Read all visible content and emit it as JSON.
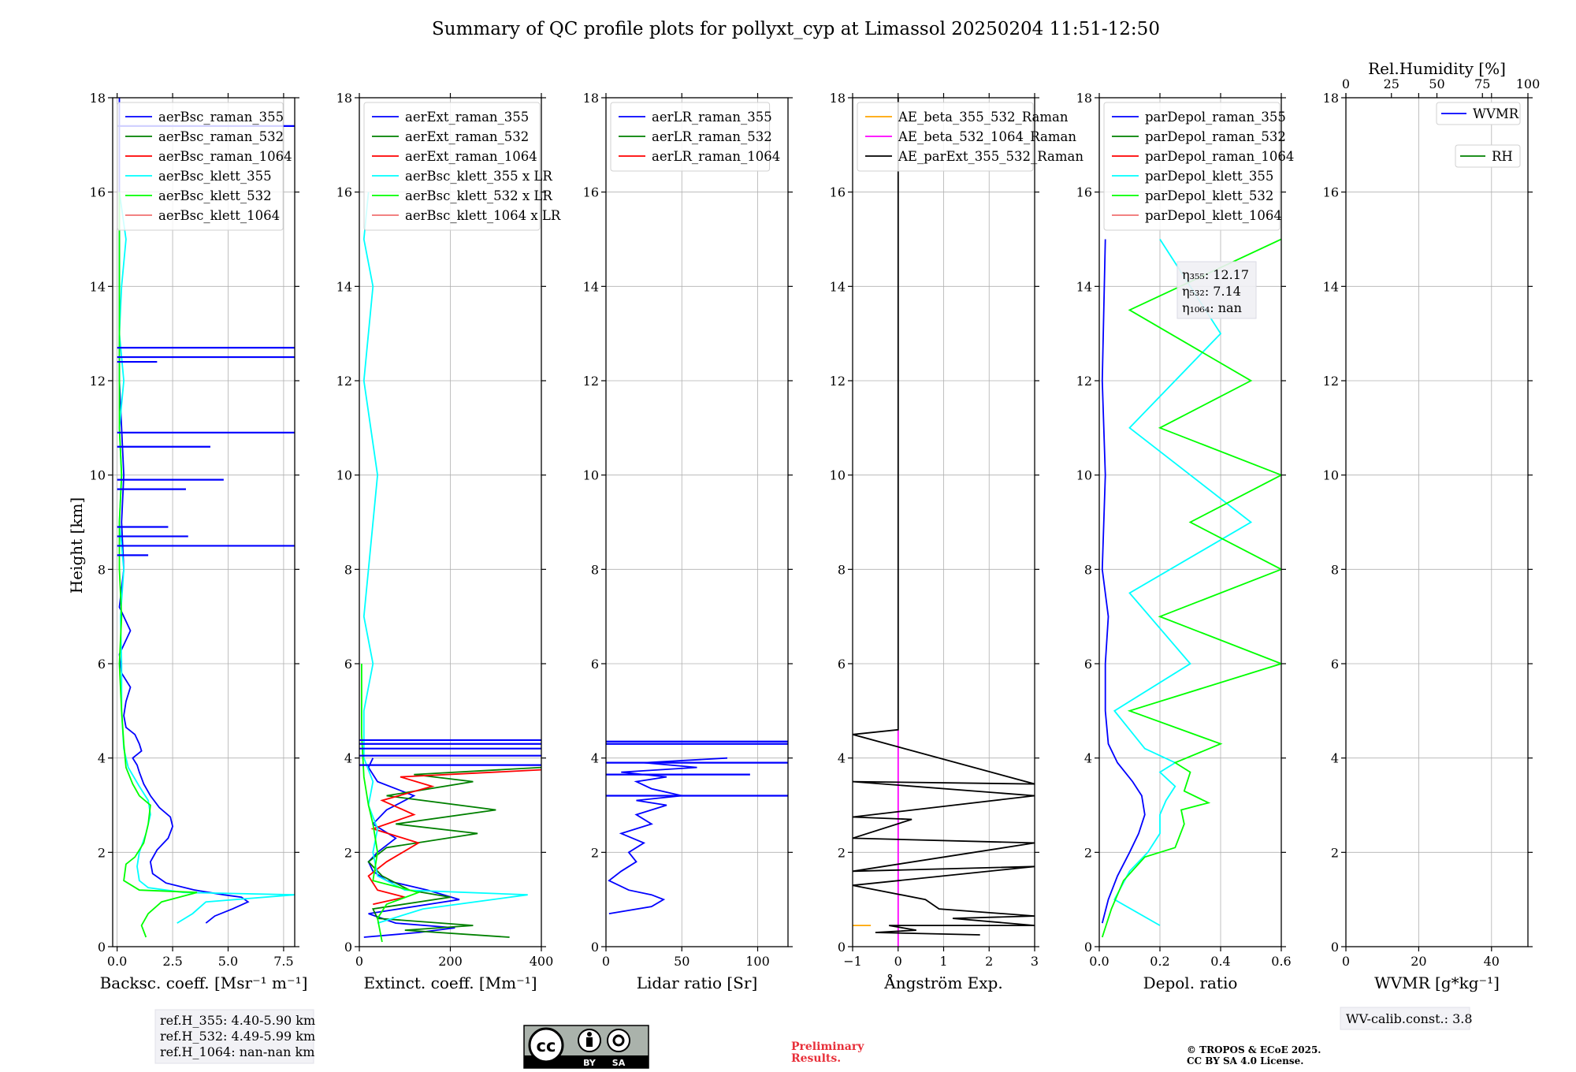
{
  "title": "Summary of QC profile plots for pollyxt_cyp at Limassol 20250204 11:51-12:50",
  "y_label": "Height [km]",
  "notes": {
    "refH": [
      "ref.H_355: 4.40-5.90 km",
      "ref.H_532: 4.49-5.99 km",
      "ref.H_1064: nan-nan km"
    ],
    "eta": [
      "η₃₅₅: 12.17",
      "η₅₃₂: 7.14",
      "η₁₀₆₄: nan"
    ],
    "wv_calib": "WV-calib.const.: 3.8",
    "preliminary": [
      "Preliminary",
      "Results."
    ],
    "copyright": [
      "© TROPOS & ECoE 2025.",
      "CC BY SA 4.0 License."
    ],
    "license_badge": [
      "BY",
      "SA"
    ]
  },
  "chart_data": [
    {
      "type": "line",
      "panel": "backscatter",
      "xlabel": "Backsc. coeff. [Msr⁻¹ m⁻¹]",
      "xlim": [
        -0.2,
        8.0
      ],
      "ylim": [
        0,
        18
      ],
      "xticks": [
        0.0,
        2.5,
        5.0,
        7.5
      ],
      "xtick_labels": [
        "0.0",
        "2.5",
        "5.0",
        "7.5"
      ],
      "yticks": [
        0,
        2,
        4,
        6,
        8,
        10,
        12,
        14,
        16,
        18
      ],
      "ytick_labels": [
        "0",
        "2",
        "4",
        "6",
        "8",
        "10",
        "12",
        "14",
        "16",
        "18"
      ],
      "grid": true,
      "legend": "top",
      "series": [
        {
          "name": "aerBsc_raman_355",
          "color": "#0000ff",
          "x": [
            4.0,
            4.4,
            5.2,
            5.9,
            5.6,
            4.8,
            3.5,
            2.2,
            1.6,
            1.5,
            1.8,
            2.3,
            2.5,
            2.4,
            1.9,
            1.5,
            1.2,
            1.0,
            0.9,
            0.7,
            1.1,
            1.0,
            0.8,
            0.4,
            0.3,
            0.4,
            0.6,
            0.2,
            0.1,
            0.6,
            0.1,
            0.3,
            0.2,
            0.3,
            0.1,
            0.1,
            0.1
          ],
          "y": [
            0.5,
            0.65,
            0.8,
            0.95,
            1.05,
            1.1,
            1.2,
            1.35,
            1.55,
            1.8,
            2.05,
            2.3,
            2.55,
            2.75,
            2.95,
            3.2,
            3.45,
            3.7,
            3.85,
            4.0,
            4.15,
            4.3,
            4.5,
            4.65,
            4.9,
            5.2,
            5.5,
            5.8,
            6.2,
            6.7,
            7.2,
            8.0,
            9.0,
            10.0,
            12.0,
            14.0,
            18.0
          ]
        },
        {
          "name": "aerBsc_raman_532",
          "color": "#008000",
          "x": [],
          "y": []
        },
        {
          "name": "aerBsc_raman_1064",
          "color": "#ff0000",
          "x": [],
          "y": []
        },
        {
          "name": "aerBsc_klett_355",
          "color": "#00ffff",
          "x": [
            2.7,
            3.4,
            4.0,
            8.0,
            3.0,
            1.4,
            1.0,
            0.9,
            1.0,
            1.3,
            1.5,
            1.4,
            1.0,
            0.5,
            0.3,
            0.2,
            0.2,
            0.15,
            0.3,
            0.1,
            0.2,
            0.1,
            0.3,
            0.1,
            0.2,
            0.4,
            0.1
          ],
          "y": [
            0.5,
            0.7,
            0.95,
            1.1,
            1.15,
            1.25,
            1.4,
            1.7,
            2.0,
            2.4,
            2.8,
            3.1,
            3.4,
            3.8,
            4.2,
            5.0,
            6.0,
            7.0,
            8.0,
            9.0,
            10.0,
            11.0,
            12.0,
            13.0,
            14.0,
            15.0,
            16.0
          ]
        },
        {
          "name": "aerBsc_klett_532",
          "color": "#00ff00",
          "x": [
            1.3,
            1.1,
            1.4,
            2.0,
            3.6,
            1.0,
            0.3,
            0.4,
            0.8,
            1.2,
            1.4,
            1.5,
            1.0,
            0.7,
            0.4,
            0.3,
            0.2,
            0.1,
            0.2,
            0.1,
            0.1,
            0.2,
            0.1,
            0.1,
            0.1,
            0.1
          ],
          "y": [
            0.2,
            0.45,
            0.7,
            0.95,
            1.15,
            1.2,
            1.4,
            1.75,
            1.9,
            2.2,
            2.6,
            3.0,
            3.2,
            3.45,
            3.8,
            4.3,
            5.0,
            6.0,
            7.0,
            8.0,
            9.0,
            10.0,
            11.0,
            12.0,
            14.0,
            16.0
          ]
        },
        {
          "name": "aerBsc_klett_1064",
          "color": "#f07070",
          "x": [],
          "y": []
        }
      ],
      "spikes": {
        "series": "aerBsc_raman_355",
        "y": [
          8.3,
          8.5,
          8.7,
          8.9,
          9.7,
          9.9,
          10.6,
          10.9,
          12.4,
          12.5,
          12.7,
          17.4
        ],
        "x": [
          1.4,
          8.0,
          3.2,
          2.3,
          3.1,
          4.8,
          4.2,
          8.0,
          1.8,
          8.0,
          8.0,
          8.0
        ]
      }
    },
    {
      "type": "line",
      "panel": "extinction",
      "xlabel": "Extinct. coeff. [Mm⁻¹]",
      "xlim": [
        0,
        400
      ],
      "ylim": [
        0,
        18
      ],
      "xticks": [
        0,
        200,
        400
      ],
      "xtick_labels": [
        "0",
        "200",
        "400"
      ],
      "yticks": [
        0,
        2,
        4,
        6,
        8,
        10,
        12,
        14,
        16,
        18
      ],
      "ytick_labels": [
        "0",
        "2",
        "4",
        "6",
        "8",
        "10",
        "12",
        "14",
        "16",
        "18"
      ],
      "grid": true,
      "legend": "top",
      "series": [
        {
          "name": "aerExt_raman_355",
          "color": "#0000ff",
          "x": [
            10,
            130,
            210,
            80,
            20,
            220,
            150,
            60,
            30,
            20,
            40,
            80,
            30,
            60,
            120,
            40,
            20,
            30
          ],
          "y": [
            0.2,
            0.3,
            0.4,
            0.5,
            0.7,
            1.0,
            1.2,
            1.4,
            1.6,
            1.8,
            2.0,
            2.3,
            2.6,
            2.9,
            3.2,
            3.5,
            3.8,
            4.0
          ]
        },
        {
          "name": "aerExt_raman_532",
          "color": "#008000",
          "x": [
            330,
            100,
            250,
            40,
            30,
            200,
            110,
            50,
            20,
            60,
            260,
            80,
            300,
            60,
            250,
            120,
            400
          ],
          "y": [
            0.2,
            0.35,
            0.45,
            0.6,
            0.8,
            1.05,
            1.2,
            1.5,
            1.8,
            2.1,
            2.4,
            2.6,
            2.9,
            3.2,
            3.5,
            3.65,
            3.8
          ]
        },
        {
          "name": "aerExt_raman_1064",
          "color": "#ff0000",
          "x": [
            30,
            100,
            40,
            20,
            60,
            130,
            30,
            120,
            50,
            160,
            90,
            400
          ],
          "y": [
            0.9,
            1.05,
            1.2,
            1.5,
            1.8,
            2.2,
            2.5,
            2.8,
            3.1,
            3.4,
            3.6,
            3.75
          ]
        },
        {
          "name": "aerBsc_klett_355 x LR",
          "color": "#00ffff",
          "x": [
            40,
            140,
            370,
            100,
            40,
            30,
            40,
            20,
            30,
            10,
            10,
            30,
            10,
            20,
            40,
            10,
            30,
            10,
            20
          ],
          "y": [
            0.5,
            0.8,
            1.1,
            1.2,
            1.5,
            2.0,
            2.5,
            3.0,
            3.5,
            4.0,
            5.0,
            6.0,
            7.0,
            8.0,
            10.0,
            12.0,
            14.0,
            15.0,
            16.0
          ]
        },
        {
          "name": "aerBsc_klett_532 x LR",
          "color": "#00ff00",
          "x": [
            50,
            40,
            60,
            130,
            30,
            40,
            30,
            20,
            10,
            5,
            5
          ],
          "y": [
            0.1,
            0.6,
            0.9,
            1.15,
            1.4,
            2.0,
            2.6,
            3.0,
            3.6,
            4.5,
            6.0
          ]
        },
        {
          "name": "aerBsc_klett_1064 x LR",
          "color": "#f07070",
          "x": [],
          "y": []
        }
      ],
      "spikes": {
        "series": "aerExt_raman_355",
        "y": [
          3.85,
          4.05,
          4.2,
          4.3,
          4.38
        ],
        "x": [
          400,
          400,
          400,
          400,
          400
        ]
      }
    },
    {
      "type": "line",
      "panel": "lidar_ratio",
      "xlabel": "Lidar ratio [Sr]",
      "xlim": [
        0,
        120
      ],
      "ylim": [
        0,
        18
      ],
      "xticks": [
        0,
        50,
        100
      ],
      "xtick_labels": [
        "0",
        "50",
        "100"
      ],
      "yticks": [
        0,
        2,
        4,
        6,
        8,
        10,
        12,
        14,
        16,
        18
      ],
      "ytick_labels": [
        "0",
        "2",
        "4",
        "6",
        "8",
        "10",
        "12",
        "14",
        "16",
        "18"
      ],
      "grid": true,
      "legend": "top",
      "series": [
        {
          "name": "aerLR_raman_355",
          "color": "#0000ff",
          "x": [
            2,
            30,
            38,
            30,
            15,
            2,
            10,
            20,
            15,
            25,
            10,
            30,
            20,
            40,
            20,
            50,
            30,
            20,
            40,
            10,
            60,
            25,
            80
          ],
          "y": [
            0.7,
            0.85,
            1.0,
            1.1,
            1.2,
            1.4,
            1.6,
            1.8,
            2.0,
            2.2,
            2.4,
            2.6,
            2.8,
            3.0,
            3.1,
            3.2,
            3.35,
            3.5,
            3.6,
            3.7,
            3.8,
            3.9,
            4.0
          ]
        },
        {
          "name": "aerLR_raman_532",
          "color": "#008000",
          "x": [],
          "y": []
        },
        {
          "name": "aerLR_raman_1064",
          "color": "#ff0000",
          "x": [],
          "y": []
        }
      ],
      "spikes": {
        "series": "aerLR_raman_355",
        "y": [
          3.2,
          3.65,
          3.9,
          4.3,
          4.35
        ],
        "x": [
          120,
          95,
          120,
          120,
          120
        ]
      }
    },
    {
      "type": "line",
      "panel": "angstrom",
      "xlabel": "Ångström Exp.",
      "xlim": [
        -1,
        3
      ],
      "ylim": [
        0,
        18
      ],
      "xticks": [
        -1,
        0,
        1,
        2,
        3
      ],
      "xtick_labels": [
        "−1",
        "0",
        "1",
        "2",
        "3"
      ],
      "yticks": [
        0,
        2,
        4,
        6,
        8,
        10,
        12,
        14,
        16,
        18
      ],
      "ytick_labels": [
        "0",
        "2",
        "4",
        "6",
        "8",
        "10",
        "12",
        "14",
        "16",
        "18"
      ],
      "grid": true,
      "legend": "top",
      "series": [
        {
          "name": "AE_beta_355_532_Raman",
          "color": "#ffa500",
          "x": [
            -1,
            -0.6
          ],
          "y": [
            0.45,
            0.45
          ]
        },
        {
          "name": "AE_beta_532_1064_Raman",
          "color": "#ff00ff",
          "x": [
            0,
            0
          ],
          "y": [
            0,
            4.6
          ]
        },
        {
          "name": "AE_parExt_355_532_Raman",
          "color": "#000000",
          "x": [
            1.8,
            -0.5,
            0.4,
            -0.2,
            3.0,
            1.2,
            3.0,
            0.9,
            0.6,
            -1.0,
            3.0,
            -1.0,
            3.0,
            -1.0,
            0.3,
            -1.0,
            3.0,
            -1.0,
            3.0,
            -1.0,
            0.0,
            0.0,
            0.0
          ],
          "y": [
            0.25,
            0.3,
            0.35,
            0.45,
            0.45,
            0.6,
            0.65,
            0.8,
            1.0,
            1.3,
            1.7,
            1.6,
            2.2,
            2.3,
            2.7,
            2.75,
            3.2,
            3.5,
            3.45,
            4.5,
            4.6,
            10.0,
            18.0
          ]
        }
      ]
    },
    {
      "type": "line",
      "panel": "depol",
      "xlabel": "Depol. ratio",
      "xlim": [
        0,
        0.6
      ],
      "ylim": [
        0,
        18
      ],
      "xticks": [
        0.0,
        0.2,
        0.4,
        0.6
      ],
      "xtick_labels": [
        "0.0",
        "0.2",
        "0.4",
        "0.6"
      ],
      "yticks": [
        0,
        2,
        4,
        6,
        8,
        10,
        12,
        14,
        16,
        18
      ],
      "ytick_labels": [
        "0",
        "2",
        "4",
        "6",
        "8",
        "10",
        "12",
        "14",
        "16",
        "18"
      ],
      "grid": true,
      "legend": "top",
      "series": [
        {
          "name": "parDepol_raman_355",
          "color": "#0000ff",
          "x": [
            0.01,
            0.03,
            0.06,
            0.1,
            0.13,
            0.15,
            0.14,
            0.11,
            0.06,
            0.03,
            0.02,
            0.02,
            0.03,
            0.01,
            0.02,
            0.01,
            0.02
          ],
          "y": [
            0.5,
            1.0,
            1.5,
            2.0,
            2.4,
            2.8,
            3.2,
            3.5,
            3.9,
            4.3,
            5.0,
            6.0,
            7.0,
            8.0,
            10.0,
            12.0,
            15.0
          ]
        },
        {
          "name": "parDepol_raman_532",
          "color": "#008000",
          "x": [],
          "y": []
        },
        {
          "name": "parDepol_raman_1064",
          "color": "#ff0000",
          "x": [],
          "y": []
        },
        {
          "name": "parDepol_klett_355",
          "color": "#00ffff",
          "x": [
            0.2,
            0.05,
            0.1,
            0.16,
            0.2,
            0.2,
            0.22,
            0.25,
            0.2,
            0.25,
            0.15,
            0.05,
            0.3,
            0.1,
            0.5,
            0.1,
            0.4,
            0.2
          ],
          "y": [
            0.45,
            1.0,
            1.6,
            2.0,
            2.4,
            2.8,
            3.1,
            3.4,
            3.7,
            3.9,
            4.2,
            5.0,
            6.0,
            7.5,
            9.0,
            11.0,
            13.0,
            15.0
          ]
        },
        {
          "name": "parDepol_klett_532",
          "color": "#00ff00",
          "x": [
            0.01,
            0.04,
            0.08,
            0.15,
            0.25,
            0.28,
            0.27,
            0.36,
            0.28,
            0.3,
            0.25,
            0.4,
            0.1,
            0.6,
            0.2,
            0.6,
            0.3,
            0.6,
            0.2,
            0.5,
            0.1,
            0.6
          ],
          "y": [
            0.2,
            0.8,
            1.4,
            1.9,
            2.1,
            2.6,
            2.9,
            3.05,
            3.3,
            3.7,
            3.9,
            4.3,
            5.0,
            6.0,
            7.0,
            8.0,
            9.0,
            10.0,
            11.0,
            12.0,
            13.5,
            15.0
          ]
        },
        {
          "name": "parDepol_klett_1064",
          "color": "#f07070",
          "x": [],
          "y": []
        }
      ]
    },
    {
      "type": "line",
      "panel": "water_vapor",
      "xlabel": "WVMR [g*kg⁻¹]",
      "xlim": [
        0,
        50
      ],
      "ylim": [
        0,
        18
      ],
      "xticks": [
        0,
        20,
        40
      ],
      "xtick_labels": [
        "0",
        "20",
        "40"
      ],
      "yticks": [
        0,
        2,
        4,
        6,
        8,
        10,
        12,
        14,
        16,
        18
      ],
      "ytick_labels": [
        "0",
        "2",
        "4",
        "6",
        "8",
        "10",
        "12",
        "14",
        "16",
        "18"
      ],
      "x2label": "Rel.Humidity [%]",
      "x2lim": [
        0,
        100
      ],
      "x2ticks": [
        0,
        25,
        50,
        75,
        100
      ],
      "x2tick_labels": [
        "0",
        "25",
        "50",
        "75",
        "100"
      ],
      "grid": true,
      "legend": "top-right",
      "series": [
        {
          "name": "WVMR",
          "color": "#0000ff",
          "x": [],
          "y": []
        },
        {
          "name": "RH",
          "color": "#008000",
          "x": [],
          "y": []
        }
      ]
    }
  ]
}
